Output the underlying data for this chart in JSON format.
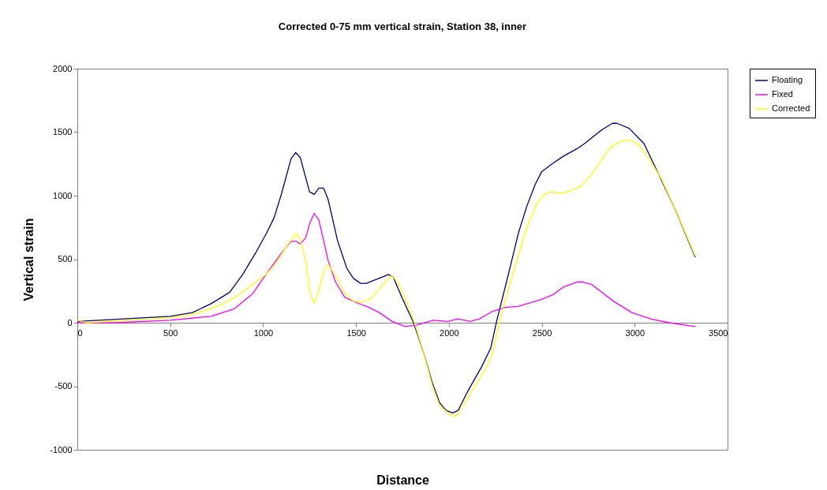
{
  "chart_data": {
    "type": "line",
    "title": "Corrected 0-75 mm vertical strain, Station 38, inner",
    "xlabel": "Distance",
    "ylabel": "Vertical strain",
    "xlim": [
      0,
      3500
    ],
    "xticks": [
      0,
      500,
      1000,
      1500,
      2000,
      2500,
      3000,
      3500
    ],
    "ylim": [
      -1000,
      2000
    ],
    "yticks": [
      -1000,
      -500,
      0,
      500,
      1000,
      1500,
      2000
    ],
    "grid": false,
    "legend": "right",
    "marker": "none",
    "line_style": "solid",
    "series": [
      {
        "name": "Floating",
        "color": "#000080",
        "x": [
          0,
          500,
          620,
          720,
          820,
          890,
          960,
          1020,
          1060,
          1100,
          1150,
          1175,
          1200,
          1250,
          1275,
          1300,
          1325,
          1350,
          1400,
          1450,
          1485,
          1525,
          1555,
          1625,
          1675,
          1700,
          1750,
          1810,
          1865,
          1910,
          1950,
          1985,
          2020,
          2050,
          2105,
          2175,
          2225,
          2260,
          2320,
          2375,
          2420,
          2465,
          2500,
          2555,
          2615,
          2690,
          2730,
          2815,
          2880,
          2905,
          2970,
          3050,
          3145,
          3225,
          3270,
          3325
        ],
        "values": [
          10,
          50,
          80,
          150,
          240,
          380,
          550,
          710,
          830,
          1020,
          1290,
          1340,
          1300,
          1030,
          1010,
          1060,
          1060,
          970,
          650,
          430,
          350,
          310,
          310,
          350,
          380,
          360,
          190,
          0,
          -240,
          -470,
          -630,
          -690,
          -710,
          -690,
          -530,
          -350,
          -200,
          30,
          380,
          710,
          920,
          1090,
          1190,
          1250,
          1310,
          1370,
          1410,
          1510,
          1570,
          1570,
          1530,
          1410,
          1120,
          870,
          710,
          520
        ]
      },
      {
        "name": "Fixed",
        "color": "#ff00ff",
        "x": [
          0,
          200,
          500,
          720,
          845,
          945,
          1015,
          1100,
          1150,
          1180,
          1200,
          1230,
          1250,
          1275,
          1300,
          1350,
          1390,
          1440,
          1500,
          1570,
          1625,
          1695,
          1765,
          1825,
          1915,
          1995,
          2050,
          2115,
          2165,
          2235,
          2305,
          2375,
          2490,
          2560,
          2615,
          2690,
          2720,
          2770,
          2885,
          2985,
          3085,
          3185,
          3325
        ],
        "values": [
          0,
          0,
          20,
          50,
          110,
          230,
          380,
          550,
          640,
          640,
          620,
          670,
          780,
          860,
          810,
          490,
          320,
          200,
          160,
          120,
          80,
          10,
          -30,
          -20,
          20,
          10,
          30,
          10,
          30,
          90,
          120,
          130,
          180,
          220,
          280,
          320,
          320,
          300,
          170,
          80,
          30,
          0,
          -30
        ]
      },
      {
        "name": "Corrected",
        "color": "#ffff00",
        "x": [
          0,
          50,
          500,
          605,
          675,
          775,
          860,
          960,
          1015,
          1070,
          1130,
          1175,
          1200,
          1230,
          1250,
          1275,
          1300,
          1325,
          1350,
          1385,
          1440,
          1485,
          1530,
          1580,
          1640,
          1690,
          1720,
          1765,
          1815,
          1865,
          1910,
          1950,
          1995,
          2025,
          2050,
          2135,
          2200,
          2235,
          2275,
          2335,
          2390,
          2430,
          2475,
          2515,
          2550,
          2600,
          2615,
          2690,
          2715,
          2770,
          2870,
          2930,
          2970,
          3015,
          3070,
          3145,
          3225,
          3325
        ],
        "values": [
          20,
          0,
          40,
          60,
          90,
          140,
          210,
          320,
          380,
          470,
          610,
          700,
          660,
          480,
          250,
          150,
          250,
          400,
          460,
          380,
          230,
          170,
          160,
          190,
          290,
          370,
          330,
          190,
          0,
          -240,
          -490,
          -650,
          -710,
          -740,
          -720,
          -510,
          -360,
          -240,
          30,
          340,
          610,
          790,
          940,
          1010,
          1030,
          1020,
          1020,
          1060,
          1080,
          1170,
          1380,
          1430,
          1440,
          1410,
          1310,
          1130,
          870,
          530
        ]
      }
    ]
  }
}
